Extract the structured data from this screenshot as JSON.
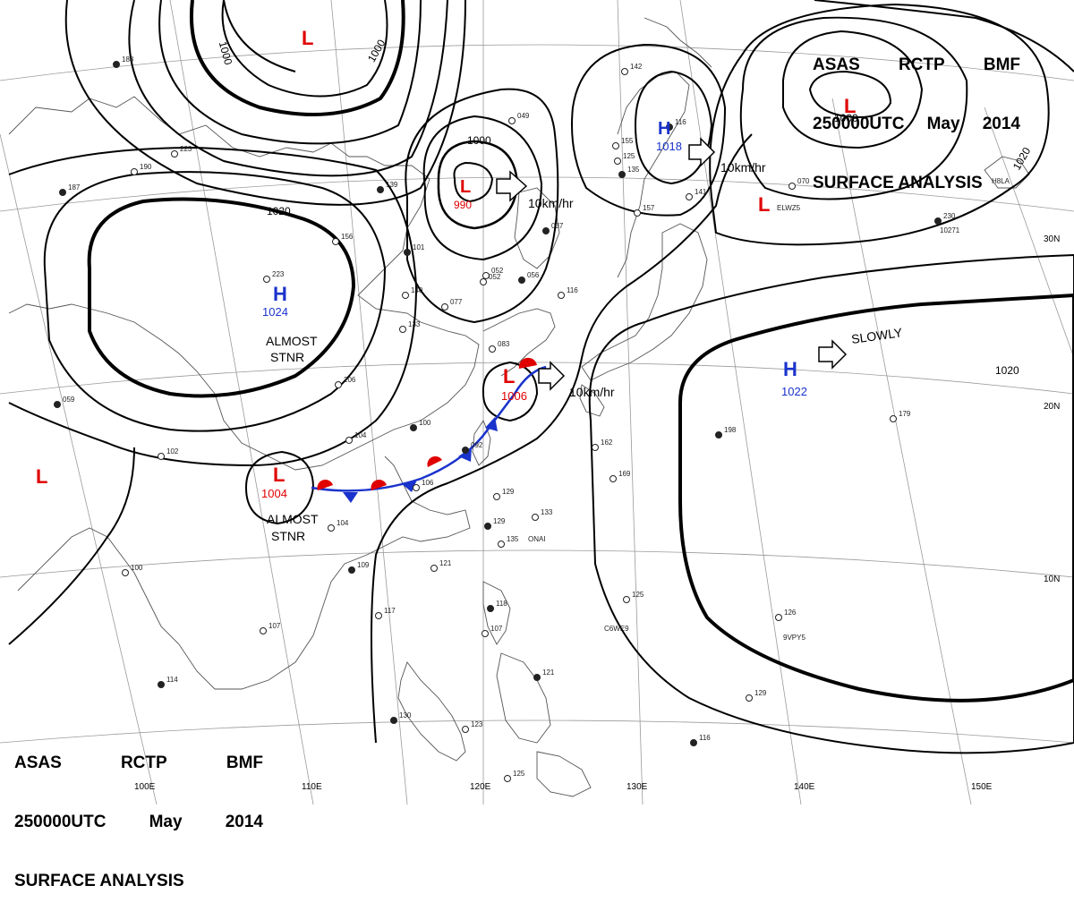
{
  "header_top": {
    "line1": [
      "ASAS",
      "RCTP",
      "BMF"
    ],
    "line2": [
      "250000UTC",
      "May",
      "2014"
    ],
    "line3": "SURFACE ANALYSIS"
  },
  "header_bottom": {
    "line1": [
      "ASAS",
      "RCTP",
      "BMF"
    ],
    "line2": [
      "250000UTC",
      "May",
      "2014"
    ],
    "line3": "SURFACE ANALYSIS"
  },
  "colors": {
    "high": "#1a33cc",
    "low": "#e00000",
    "cold_front": "#1a33cc",
    "warm_front": "#e00000",
    "isobar": "#000000",
    "coast": "#555555",
    "grid": "#9a9a9a"
  },
  "longitude_labels": [
    "100E",
    "110E",
    "120E",
    "130E",
    "140E",
    "150E"
  ],
  "latitude_labels": [
    "30N",
    "20N",
    "10N"
  ],
  "pressure_systems": [
    {
      "type": "L",
      "value": ""
    },
    {
      "type": "L",
      "value": "990"
    },
    {
      "type": "H",
      "value": "1018"
    },
    {
      "type": "L",
      "value": ""
    },
    {
      "type": "L",
      "value": ""
    },
    {
      "type": "H",
      "value": "1024"
    },
    {
      "type": "L",
      "value": "1006"
    },
    {
      "type": "H",
      "value": "1022"
    },
    {
      "type": "L",
      "value": "1004"
    },
    {
      "type": "L",
      "value": ""
    }
  ],
  "isobar_labels": [
    "1000",
    "1000",
    "1000",
    "1000",
    "1020",
    "1020",
    "1020"
  ],
  "motions": [
    "10km/hr",
    "10km/hr",
    "10km/hr",
    "SLOWLY"
  ],
  "annotations": [
    "ALMOST",
    "STNR",
    "ALMOST",
    "STNR"
  ],
  "stations": [
    "188",
    "223",
    "190",
    "187",
    "156",
    "223",
    "139",
    "206",
    "104",
    "100",
    "133",
    "140",
    "101",
    "077",
    "052",
    "037",
    "049",
    "052",
    "056",
    "116",
    "083",
    "092",
    "106",
    "104",
    "109",
    "117",
    "107",
    "114",
    "100",
    "102",
    "059",
    "129",
    "133",
    "129",
    "135",
    "121",
    "118",
    "107",
    "123",
    "130",
    "125",
    "125",
    "121",
    "162",
    "169",
    "198",
    "179",
    "126",
    "116",
    "129",
    "125",
    "230",
    "070",
    "155",
    "135",
    "157",
    "142",
    "116",
    "141"
  ],
  "station_ids": [
    "ONAI",
    "C6WE9",
    "9VPY5",
    "ELWZ5",
    "10271",
    "H8LA"
  ]
}
